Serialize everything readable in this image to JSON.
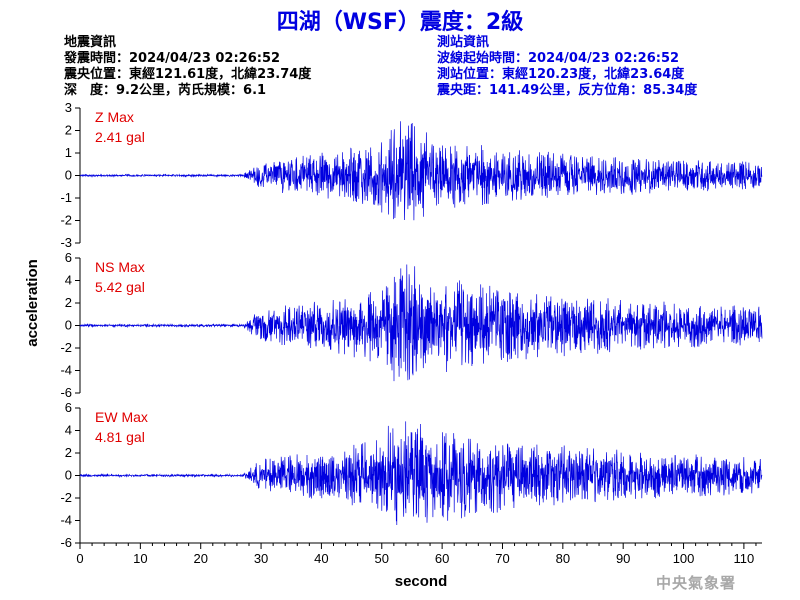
{
  "title": "四湖（WSF）震度：2級",
  "earthquake_info": {
    "heading": "地震資訊",
    "origin_time": "發震時間：2024/04/23 02:26:52",
    "epicenter": "震央位置：東經121.61度，北緯23.74度",
    "depth_magnitude": "深　度：9.2公里，芮氏規模：6.1"
  },
  "station_info": {
    "heading": "測站資訊",
    "wave_start": "波線起始時間：2024/04/23 02:26:52",
    "location": "測站位置：東經120.23度，北緯23.64度",
    "distance": "震央距：141.49公里，反方位角：85.34度"
  },
  "credit": "中央氣象署",
  "chart_data": {
    "type": "line",
    "xlabel": "second",
    "ylabel": "acceleration",
    "xlim": [
      0,
      113
    ],
    "xticks": [
      0,
      10,
      20,
      30,
      40,
      50,
      60,
      70,
      80,
      90,
      100,
      110
    ],
    "line_color": "#0000e0",
    "label_color": "#e00000",
    "panels": [
      {
        "name": "Z Max",
        "max_label": "2.41 gal",
        "peak": 2.41,
        "ylim": [
          -3,
          3
        ],
        "yticks": [
          3,
          2,
          1,
          0,
          -1,
          -2,
          -3
        ]
      },
      {
        "name": "NS Max",
        "max_label": "5.42 gal",
        "peak": 5.42,
        "ylim": [
          -6,
          6
        ],
        "yticks": [
          6,
          4,
          2,
          0,
          -2,
          -4,
          -6
        ]
      },
      {
        "name": "EW Max",
        "max_label": "4.81 gal",
        "peak": 4.81,
        "ylim": [
          -6,
          6
        ],
        "yticks": [
          6,
          4,
          2,
          0,
          -2,
          -4,
          -6
        ]
      }
    ]
  }
}
